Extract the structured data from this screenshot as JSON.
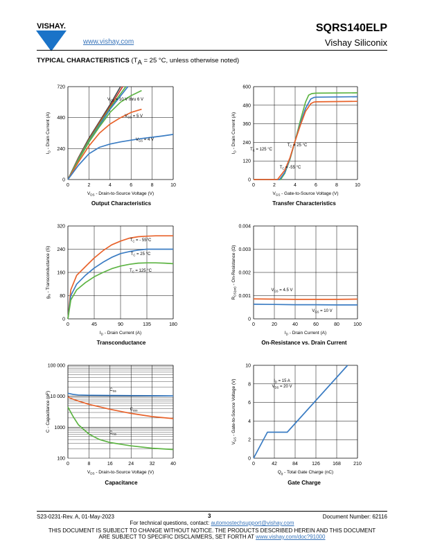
{
  "header": {
    "brand": "VISHAY.",
    "url": "www.vishay.com",
    "part_number": "SQRS140ELP",
    "company": "Vishay Siliconix"
  },
  "section": {
    "title": "TYPICAL CHARACTERISTICS",
    "condition_prefix": "(T",
    "condition_sub": "A",
    "condition_suffix": " = 25 °C, unless otherwise noted)"
  },
  "colors": {
    "blue": "#3a7cc3",
    "orange": "#e8622a",
    "green": "#5db443",
    "dark": "#4a4a4a",
    "gray": "#7a7a7a",
    "red": "#d23a2a",
    "link": "#3572b9"
  },
  "chart_data": [
    {
      "type": "line",
      "title": "Output Characteristics",
      "xlabel": "V_DS - Drain-to-Source Voltage (V)",
      "ylabel": "I_D - Drain Current (A)",
      "xlim": [
        0,
        10
      ],
      "ylim": [
        0,
        720
      ],
      "xticks": [
        0,
        2,
        4,
        6,
        8,
        10
      ],
      "yticks": [
        0,
        240,
        480,
        720
      ],
      "series": [
        {
          "name": "V_GS = 10 V thru 6 V",
          "color": "#4a4a4a",
          "x": [
            0,
            1,
            2,
            3,
            4,
            5
          ],
          "y": [
            0,
            170,
            320,
            450,
            580,
            720
          ]
        },
        {
          "name": "",
          "color": "#d23a2a",
          "x": [
            0,
            1,
            2,
            3,
            4,
            5.2
          ],
          "y": [
            0,
            165,
            310,
            440,
            565,
            720
          ]
        },
        {
          "name": "",
          "color": "#5db443",
          "x": [
            0,
            1,
            2,
            3,
            4,
            5.5
          ],
          "y": [
            0,
            160,
            305,
            430,
            555,
            720
          ]
        },
        {
          "name": "",
          "color": "#3a7cc3",
          "x": [
            0,
            1,
            2,
            3,
            4,
            5.7
          ],
          "y": [
            0,
            155,
            295,
            420,
            545,
            720
          ]
        },
        {
          "name": "",
          "color": "#5db443",
          "x": [
            0,
            1,
            2,
            3,
            4,
            5,
            6,
            7
          ],
          "y": [
            0,
            150,
            290,
            410,
            520,
            600,
            650,
            690
          ]
        },
        {
          "name": "V_GS = 5 V",
          "color": "#e8622a",
          "x": [
            0,
            1,
            2,
            3,
            4,
            5,
            6,
            7
          ],
          "y": [
            0,
            135,
            260,
            360,
            430,
            480,
            520,
            545
          ]
        },
        {
          "name": "V_GS = 4 V",
          "color": "#3a7cc3",
          "x": [
            0,
            1,
            2,
            3,
            4,
            5,
            6,
            7,
            8,
            9,
            10
          ],
          "y": [
            0,
            110,
            200,
            250,
            275,
            292,
            305,
            318,
            328,
            338,
            350
          ]
        }
      ],
      "annotations": [
        "V_GS = 10 V thru 6 V",
        "V_GS = 5 V",
        "V_GS = 4 V"
      ]
    },
    {
      "type": "line",
      "title": "Transfer Characteristics",
      "xlabel": "V_GS - Gate-to-Source Voltage (V)",
      "ylabel": "I_D - Drain Current (A)",
      "xlim": [
        0,
        10
      ],
      "ylim": [
        0,
        600
      ],
      "xticks": [
        0,
        2,
        4,
        6,
        8,
        10
      ],
      "yticks": [
        0,
        120,
        240,
        360,
        480,
        600
      ],
      "series": [
        {
          "name": "T_C = -55 °C",
          "color": "#5db443",
          "x": [
            0,
            2.6,
            3.0,
            3.5,
            4.0,
            4.5,
            5.0,
            5.3,
            5.6,
            6,
            10
          ],
          "y": [
            0,
            0,
            40,
            130,
            250,
            380,
            500,
            545,
            555,
            558,
            560
          ]
        },
        {
          "name": "T_C = 25 °C",
          "color": "#3a7cc3",
          "x": [
            0,
            2.5,
            3.0,
            3.5,
            4.0,
            4.5,
            5.0,
            5.5,
            5.8,
            6,
            10
          ],
          "y": [
            0,
            0,
            45,
            135,
            250,
            360,
            460,
            520,
            530,
            532,
            535
          ]
        },
        {
          "name": "T_C = 125 °C",
          "color": "#e8622a",
          "x": [
            0,
            2.3,
            3.0,
            3.5,
            4.0,
            4.5,
            5.0,
            5.5,
            5.8,
            6,
            10
          ],
          "y": [
            0,
            0,
            60,
            140,
            250,
            350,
            440,
            490,
            500,
            502,
            505
          ]
        }
      ],
      "annotations": [
        "T_C = 125 °C",
        "T_C = 25 °C",
        "T_C = -55 °C"
      ]
    },
    {
      "type": "line",
      "title": "Transconductance",
      "xlabel": "I_D - Drain Current (A)",
      "ylabel": "g_fs - Transconductance (S)",
      "xlim": [
        0,
        180
      ],
      "ylim": [
        0,
        320
      ],
      "xticks": [
        0,
        45,
        90,
        135,
        180
      ],
      "yticks": [
        0,
        80,
        160,
        240,
        320
      ],
      "series": [
        {
          "name": "T_C = -55 °C",
          "color": "#e8622a",
          "x": [
            0,
            5,
            15,
            30,
            45,
            60,
            75,
            90,
            105,
            120,
            135,
            150,
            165,
            180
          ],
          "y": [
            0,
            100,
            150,
            180,
            210,
            235,
            255,
            268,
            278,
            283,
            285,
            286,
            286,
            286
          ]
        },
        {
          "name": "T_C = 25 °C",
          "color": "#3a7cc3",
          "x": [
            0,
            5,
            15,
            30,
            45,
            60,
            75,
            90,
            105,
            120,
            135,
            150,
            165,
            180
          ],
          "y": [
            0,
            80,
            120,
            150,
            175,
            195,
            212,
            225,
            232,
            237,
            240,
            240,
            240,
            240
          ]
        },
        {
          "name": "T_C = 125 °C",
          "color": "#5db443",
          "x": [
            0,
            5,
            15,
            30,
            45,
            60,
            75,
            90,
            105,
            120,
            135,
            150,
            165,
            180
          ],
          "y": [
            0,
            65,
            100,
            125,
            145,
            160,
            173,
            182,
            188,
            192,
            193,
            193,
            192,
            190
          ]
        }
      ],
      "annotations": [
        "T_C = - 55°C",
        "T_C = 25 °C",
        "T_C = 125 °C"
      ]
    },
    {
      "type": "line",
      "title": "On-Resistance vs. Drain Current",
      "xlabel": "I_D - Drain Current (A)",
      "ylabel": "R_DS(on) - On-Resistance (Ω)",
      "xlim": [
        0,
        100
      ],
      "ylim": [
        0,
        0.004
      ],
      "xticks": [
        0,
        20,
        40,
        60,
        80,
        100
      ],
      "yticks": [
        0.0,
        0.001,
        0.002,
        0.003,
        0.004
      ],
      "series": [
        {
          "name": "V_GS = 4.5 V",
          "color": "#e8622a",
          "x": [
            0,
            20,
            40,
            60,
            80,
            100
          ],
          "y": [
            0.00086,
            0.00085,
            0.00084,
            0.00084,
            0.00084,
            0.00085
          ]
        },
        {
          "name": "V_GS = 10 V",
          "color": "#3a7cc3",
          "x": [
            0,
            20,
            40,
            60,
            80,
            100
          ],
          "y": [
            0.00063,
            0.00062,
            0.00061,
            0.00061,
            0.0006,
            0.0006
          ]
        }
      ],
      "annotations": [
        "V_GS = 4.5 V",
        "V_GS = 10 V"
      ]
    },
    {
      "type": "line",
      "title": "Capacitance",
      "xlabel": "V_DS - Drain-to-Source Voltage (V)",
      "ylabel": "C - Capacitance (pF)",
      "xlim": [
        0,
        40
      ],
      "ylim": [
        100,
        100000
      ],
      "yscale": "log",
      "xticks": [
        0,
        8,
        16,
        24,
        32,
        40
      ],
      "yticks": [
        100,
        1000,
        10000,
        100000
      ],
      "ytick_labels": [
        "100",
        "1000",
        "10 000",
        "100 000"
      ],
      "series": [
        {
          "name": "C_iss",
          "color": "#3a7cc3",
          "x": [
            0,
            2,
            4,
            8,
            16,
            24,
            32,
            40
          ],
          "y": [
            12500,
            11500,
            11000,
            10800,
            10600,
            10500,
            10400,
            10300
          ]
        },
        {
          "name": "C_oss",
          "color": "#e8622a",
          "x": [
            0,
            2,
            4,
            8,
            16,
            24,
            32,
            40
          ],
          "y": [
            9500,
            8000,
            7000,
            5500,
            3800,
            2800,
            2200,
            1900
          ]
        },
        {
          "name": "C_rss",
          "color": "#5db443",
          "x": [
            0,
            2,
            4,
            8,
            12,
            16,
            24,
            32,
            40
          ],
          "y": [
            4500,
            2200,
            1200,
            600,
            400,
            320,
            250,
            210,
            190
          ]
        }
      ],
      "annotations": [
        "C_iss",
        "C_oss",
        "C_rss"
      ]
    },
    {
      "type": "line",
      "title": "Gate Charge",
      "xlabel": "Q_g - Total Gate Charge (nC)",
      "ylabel": "V_GS - Gate-to-Source Voltage (V)",
      "xlim": [
        0,
        210
      ],
      "ylim": [
        0,
        10
      ],
      "xticks": [
        0,
        42,
        84,
        126,
        168,
        210
      ],
      "yticks": [
        0,
        2,
        4,
        6,
        8,
        10
      ],
      "series": [
        {
          "name": "",
          "color": "#3a7cc3",
          "x": [
            0,
            28,
            68,
            190
          ],
          "y": [
            0,
            2.8,
            2.8,
            10
          ]
        }
      ],
      "annotations": [
        "I_D = 15 A",
        "V_DS = 20 V"
      ]
    }
  ],
  "captions": [
    "Output Characteristics",
    "Transfer Characteristics",
    "Transconductance",
    "On-Resistance vs. Drain Current",
    "Capacitance",
    "Gate Charge"
  ],
  "footer": {
    "doc_rev": "S23-0231-Rev. A, 01-May-2023",
    "page": "3",
    "doc_number": "Document Number: 62116",
    "contact_prefix": "For technical questions, contact: ",
    "contact_email": "automostechsupport@vishay.com",
    "disclaimer1": "THIS DOCUMENT IS SUBJECT TO CHANGE WITHOUT NOTICE. THE PRODUCTS DESCRIBED HEREIN AND THIS DOCUMENT",
    "disclaimer2_prefix": "ARE SUBJECT TO SPECIFIC DISCLAIMERS, SET FORTH AT ",
    "disclaimer2_link": "www.vishay.com/doc?91000"
  }
}
